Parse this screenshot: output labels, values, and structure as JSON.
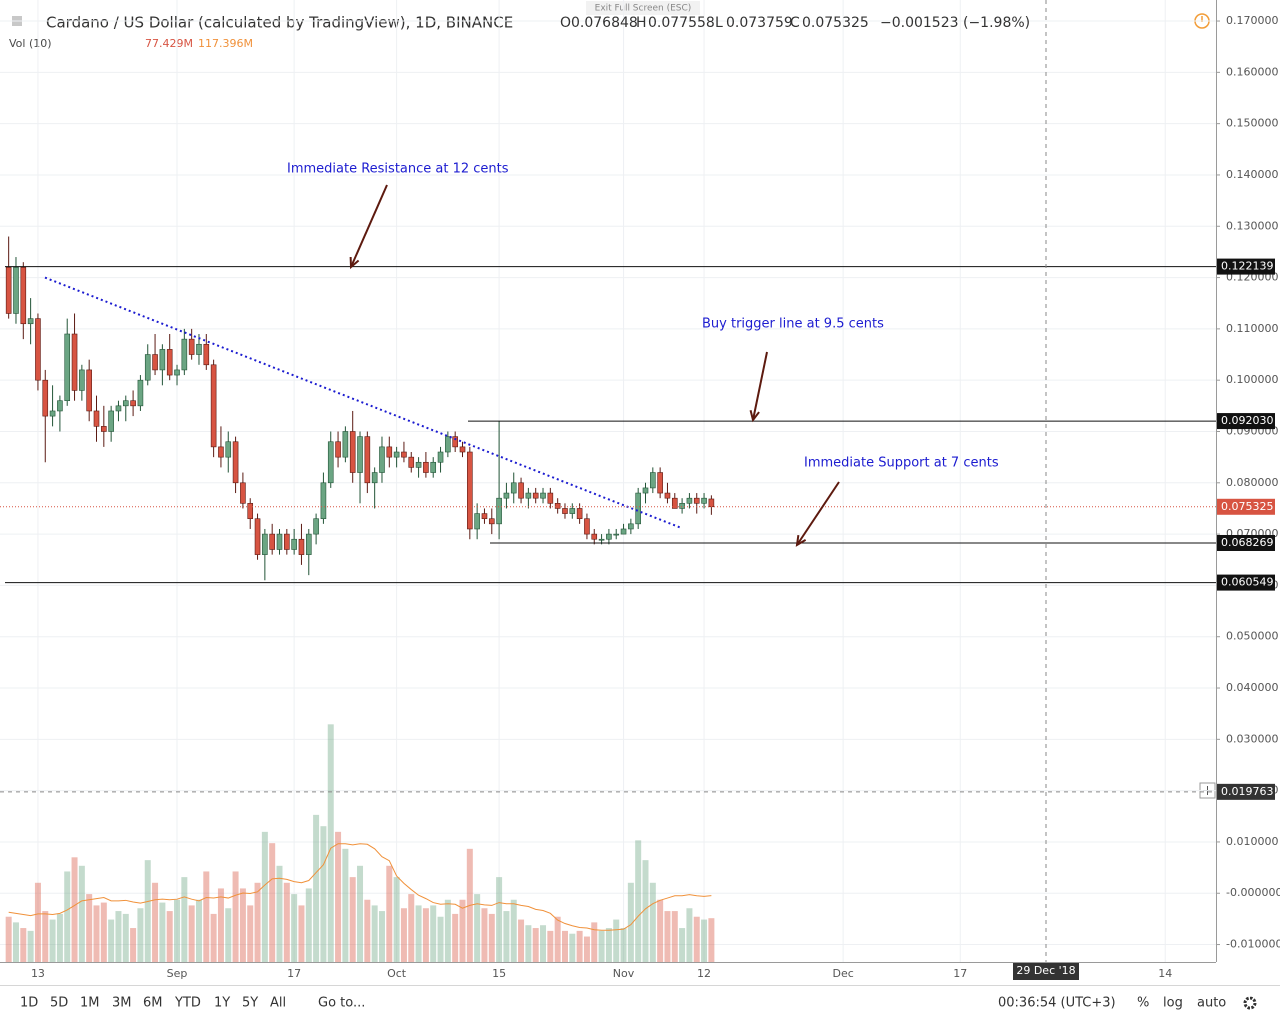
{
  "chart_data": {
    "type": "candlestick",
    "title": "Cardano / US Dollar (calculated by TradingView), 1D, BINANCE",
    "ohlc_labels": [
      "O",
      "H",
      "L",
      "C"
    ],
    "change": "−0.001523 (−1.98%)",
    "volume_title": "Vol (10)",
    "volume_value": "77.429M",
    "volume_ma_value": "117.396M",
    "exit_fullscreen": "Exit Full Screen (ESC)",
    "categories": [
      null,
      null,
      null,
      null,
      "13",
      null,
      null,
      null,
      null,
      null,
      null,
      null,
      null,
      null,
      null,
      null,
      null,
      null,
      null,
      null,
      null,
      null,
      null,
      "Sep",
      null,
      null,
      null,
      null,
      null,
      null,
      null,
      null,
      null,
      null,
      null,
      null,
      null,
      null,
      null,
      "17",
      null,
      null,
      null,
      null,
      null,
      null,
      null,
      null,
      null,
      null,
      null,
      null,
      null,
      "Oct",
      null,
      null,
      null,
      null,
      null,
      null,
      null,
      null,
      null,
      null,
      null,
      null,
      null,
      "15",
      null,
      null,
      null,
      null,
      null,
      null,
      null,
      null,
      null,
      null,
      null,
      null,
      null,
      null,
      null,
      null,
      "Nov",
      null,
      null,
      null,
      null,
      null,
      null,
      null,
      null,
      null,
      null,
      "12",
      null,
      null,
      null,
      null,
      null,
      null,
      null,
      null,
      null,
      null,
      null,
      null,
      null,
      null,
      null,
      null,
      null,
      null,
      "Dec",
      null,
      null,
      null,
      null,
      null,
      null,
      null,
      null,
      null,
      null,
      null,
      null,
      null,
      null,
      null,
      "17",
      null,
      null,
      null,
      null,
      null,
      null,
      null,
      null,
      null,
      null,
      null,
      null,
      null,
      null,
      null,
      null,
      null,
      null,
      null,
      null,
      null,
      null,
      null,
      null,
      null,
      null,
      null,
      "14",
      null,
      null,
      null,
      null,
      null,
      null
    ],
    "open": [
      0.122,
      0.113,
      0.122,
      0.111,
      0.112,
      0.1,
      0.093,
      0.094,
      0.096,
      0.109,
      0.098,
      0.102,
      0.094,
      0.091,
      0.09,
      0.094,
      0.095,
      0.096,
      0.095,
      0.1,
      0.105,
      0.102,
      0.106,
      0.101,
      0.102,
      0.108,
      0.105,
      0.107,
      0.103,
      0.087,
      0.085,
      0.088,
      0.08,
      0.076,
      0.073,
      0.066,
      0.07,
      0.067,
      0.07,
      0.067,
      0.069,
      0.066,
      0.07,
      0.073,
      0.08,
      0.088,
      0.085,
      0.09,
      0.082,
      0.089,
      0.08,
      0.082,
      0.087,
      0.085,
      0.086,
      0.085,
      0.083,
      0.084,
      0.082,
      0.084,
      0.086,
      0.089,
      0.087,
      0.086,
      0.071,
      0.074,
      0.073,
      0.072,
      0.077,
      0.078,
      0.08,
      0.077,
      0.078,
      0.077,
      0.078,
      0.076,
      0.075,
      0.074,
      0.075,
      0.073,
      0.07,
      0.069,
      0.069,
      0.07,
      0.07,
      0.071,
      0.072,
      0.078,
      0.079,
      0.082,
      0.078,
      0.077,
      0.075,
      0.076,
      0.077,
      0.076,
      0.076848,
      null,
      null,
      null,
      null,
      null,
      null,
      null,
      null,
      null,
      null,
      null,
      null,
      null,
      null,
      null,
      null,
      null,
      null,
      null,
      null,
      null,
      null,
      null,
      null,
      null,
      null,
      null,
      null,
      null,
      null,
      null,
      null,
      null,
      null,
      null,
      null,
      null,
      null,
      null,
      null,
      null,
      null,
      null,
      null,
      null,
      null,
      null,
      null,
      null,
      null,
      null,
      null,
      null,
      null,
      null,
      null,
      null,
      null,
      null,
      null,
      null,
      null,
      null,
      null,
      null,
      null,
      null,
      null
    ],
    "high": [
      0.128,
      0.124,
      0.123,
      0.116,
      0.113,
      0.102,
      0.099,
      0.097,
      0.112,
      0.113,
      0.103,
      0.104,
      0.097,
      0.095,
      0.095,
      0.096,
      0.097,
      0.098,
      0.101,
      0.107,
      0.109,
      0.107,
      0.109,
      0.103,
      0.11,
      0.11,
      0.109,
      0.109,
      0.104,
      0.091,
      0.09,
      0.089,
      0.082,
      0.077,
      0.074,
      0.071,
      0.072,
      0.071,
      0.071,
      0.071,
      0.072,
      0.071,
      0.074,
      0.082,
      0.09,
      0.09,
      0.091,
      0.094,
      0.09,
      0.09,
      0.083,
      0.089,
      0.089,
      0.087,
      0.088,
      0.086,
      0.085,
      0.086,
      0.085,
      0.087,
      0.09,
      0.09,
      0.088,
      0.087,
      0.076,
      0.075,
      0.075,
      0.092,
      0.08,
      0.082,
      0.081,
      0.079,
      0.079,
      0.079,
      0.079,
      0.077,
      0.076,
      0.076,
      0.076,
      0.074,
      0.071,
      0.07,
      0.071,
      0.071,
      0.072,
      0.073,
      0.079,
      0.08,
      0.083,
      0.083,
      0.08,
      0.078,
      0.077,
      0.078,
      0.078,
      0.078,
      0.077558,
      null,
      null,
      null,
      null,
      null,
      null,
      null,
      null,
      null,
      null,
      null,
      null,
      null,
      null,
      null,
      null,
      null,
      null,
      null,
      null,
      null,
      null,
      null,
      null,
      null,
      null,
      null,
      null,
      null,
      null,
      null,
      null,
      null,
      null,
      null,
      null,
      null,
      null,
      null,
      null,
      null,
      null,
      null,
      null,
      null,
      null,
      null,
      null,
      null,
      null,
      null,
      null,
      null,
      null,
      null,
      null,
      null,
      null,
      null,
      null,
      null,
      null,
      null,
      null,
      null,
      null,
      null,
      null
    ],
    "low": [
      0.112,
      0.111,
      0.108,
      0.107,
      0.098,
      0.084,
      0.091,
      0.09,
      0.095,
      0.096,
      0.096,
      0.092,
      0.088,
      0.087,
      0.088,
      0.092,
      0.092,
      0.093,
      0.094,
      0.099,
      0.101,
      0.099,
      0.1,
      0.099,
      0.101,
      0.104,
      0.103,
      0.102,
      0.085,
      0.083,
      0.082,
      0.078,
      0.075,
      0.071,
      0.065,
      0.061,
      0.066,
      0.066,
      0.066,
      0.066,
      0.064,
      0.062,
      0.068,
      0.072,
      0.079,
      0.083,
      0.084,
      0.08,
      0.076,
      0.078,
      0.075,
      0.08,
      0.083,
      0.083,
      0.084,
      0.082,
      0.081,
      0.081,
      0.081,
      0.082,
      0.085,
      0.086,
      0.085,
      0.069,
      0.069,
      0.072,
      0.07,
      0.069,
      0.075,
      0.076,
      0.076,
      0.075,
      0.076,
      0.076,
      0.075,
      0.074,
      0.073,
      0.073,
      0.072,
      0.069,
      0.068,
      0.068,
      0.068,
      0.069,
      0.07,
      0.07,
      0.071,
      0.076,
      0.078,
      0.077,
      0.076,
      0.075,
      0.074,
      0.075,
      0.074,
      0.075,
      0.073759,
      null,
      null,
      null,
      null,
      null,
      null,
      null,
      null,
      null,
      null,
      null,
      null,
      null,
      null,
      null,
      null,
      null,
      null,
      null,
      null,
      null,
      null,
      null,
      null,
      null,
      null,
      null,
      null,
      null,
      null,
      null,
      null,
      null,
      null,
      null,
      null,
      null,
      null,
      null,
      null,
      null,
      null,
      null,
      null,
      null,
      null,
      null,
      null,
      null,
      null,
      null,
      null,
      null,
      null,
      null,
      null,
      null,
      null,
      null,
      null,
      null,
      null,
      null,
      null,
      null,
      null,
      null,
      null
    ],
    "close": [
      0.113,
      0.122,
      0.111,
      0.112,
      0.1,
      0.093,
      0.094,
      0.096,
      0.109,
      0.098,
      0.102,
      0.094,
      0.091,
      0.09,
      0.094,
      0.095,
      0.096,
      0.095,
      0.1,
      0.105,
      0.102,
      0.106,
      0.101,
      0.102,
      0.108,
      0.105,
      0.107,
      0.103,
      0.087,
      0.085,
      0.088,
      0.08,
      0.076,
      0.073,
      0.066,
      0.07,
      0.067,
      0.07,
      0.067,
      0.069,
      0.066,
      0.07,
      0.073,
      0.08,
      0.088,
      0.085,
      0.09,
      0.082,
      0.089,
      0.08,
      0.082,
      0.087,
      0.085,
      0.086,
      0.085,
      0.083,
      0.084,
      0.082,
      0.084,
      0.086,
      0.089,
      0.087,
      0.086,
      0.071,
      0.074,
      0.073,
      0.072,
      0.077,
      0.078,
      0.08,
      0.077,
      0.078,
      0.077,
      0.078,
      0.076,
      0.075,
      0.074,
      0.075,
      0.073,
      0.07,
      0.069,
      0.069,
      0.07,
      0.07,
      0.071,
      0.072,
      0.078,
      0.079,
      0.082,
      0.078,
      0.077,
      0.075,
      0.076,
      0.077,
      0.076,
      0.077,
      0.075325,
      null,
      null,
      null,
      null,
      null,
      null,
      null,
      null,
      null,
      null,
      null,
      null,
      null,
      null,
      null,
      null,
      null,
      null,
      null,
      null,
      null,
      null,
      null,
      null,
      null,
      null,
      null,
      null,
      null,
      null,
      null,
      null,
      null,
      null,
      null,
      null,
      null,
      null,
      null,
      null,
      null,
      null,
      null,
      null,
      null,
      null,
      null,
      null,
      null,
      null,
      null,
      null,
      null,
      null,
      null,
      null,
      null,
      null,
      null,
      null,
      null,
      null,
      null,
      null,
      null,
      null,
      null,
      null
    ],
    "volume": [
      80,
      70,
      60,
      55,
      140,
      90,
      75,
      85,
      160,
      185,
      170,
      120,
      100,
      105,
      75,
      90,
      85,
      60,
      95,
      180,
      140,
      105,
      90,
      110,
      150,
      100,
      110,
      160,
      85,
      130,
      95,
      160,
      130,
      100,
      140,
      230,
      210,
      170,
      140,
      120,
      100,
      130,
      260,
      240,
      420,
      230,
      200,
      150,
      170,
      110,
      100,
      90,
      170,
      150,
      95,
      120,
      100,
      95,
      100,
      80,
      110,
      85,
      110,
      200,
      120,
      95,
      85,
      150,
      90,
      110,
      75,
      65,
      60,
      65,
      55,
      80,
      55,
      50,
      55,
      45,
      70,
      55,
      60,
      75,
      60,
      140,
      215,
      180,
      140,
      110,
      90,
      90,
      60,
      95,
      80,
      75,
      77.429,
      null,
      null,
      null,
      null,
      null,
      null,
      null,
      null,
      null,
      null,
      null,
      null,
      null,
      null,
      null,
      null,
      null,
      null,
      null,
      null,
      null,
      null,
      null,
      null,
      null,
      null,
      null,
      null,
      null,
      null,
      null,
      null,
      null,
      null,
      null,
      null,
      null,
      null,
      null,
      null,
      null,
      null,
      null,
      null,
      null,
      null,
      null,
      null,
      null,
      null,
      null,
      null,
      null,
      null,
      null,
      null,
      null,
      null,
      null,
      null,
      null,
      null,
      null,
      null,
      null,
      null,
      null,
      null
    ],
    "volume_ma": [
      88,
      86,
      84,
      82,
      85,
      85,
      84,
      86,
      92,
      100,
      108,
      110,
      112,
      114,
      108,
      108,
      109,
      106,
      104,
      107,
      110,
      111,
      110,
      111,
      115,
      111,
      108,
      114,
      113,
      115,
      113,
      118,
      122,
      121,
      124,
      136,
      147,
      148,
      146,
      142,
      140,
      144,
      158,
      172,
      201,
      209,
      209,
      207,
      209,
      208,
      200,
      186,
      179,
      152,
      139,
      128,
      118,
      112,
      105,
      102,
      103,
      102,
      95,
      100,
      103,
      101,
      100,
      105,
      103,
      103,
      100,
      98,
      93,
      91,
      86,
      74,
      68,
      64,
      61,
      60,
      57,
      56,
      56,
      57,
      58,
      66,
      81,
      94,
      103,
      109,
      113,
      117,
      117,
      119,
      117,
      116,
      117.396,
      null,
      null,
      null,
      null,
      null,
      null,
      null,
      null,
      null,
      null,
      null,
      null,
      null,
      null,
      null,
      null,
      null,
      null,
      null,
      null,
      null,
      null,
      null,
      null,
      null,
      null,
      null,
      null,
      null,
      null,
      null,
      null,
      null,
      null,
      null,
      null,
      null,
      null,
      null,
      null,
      null,
      null,
      null,
      null,
      null,
      null,
      null,
      null,
      null,
      null,
      null,
      null,
      null,
      null,
      null,
      null,
      null,
      null,
      null,
      null,
      null,
      null,
      null,
      null,
      null,
      null,
      null,
      null
    ],
    "up_color": "#6ba583",
    "down_color": "#d75442",
    "ma_color": "#f0913a",
    "trend_color": "#1c1cd0",
    "ylim": [
      -0.0134,
      0.1741
    ],
    "volume_ylim": [
      0,
      1700
    ],
    "yticks": [
      {
        "value": 0.17,
        "label": "0.170000"
      },
      {
        "value": 0.16,
        "label": "0.160000"
      },
      {
        "value": 0.15,
        "label": "0.150000"
      },
      {
        "value": 0.14,
        "label": "0.140000"
      },
      {
        "value": 0.13,
        "label": "0.130000"
      },
      {
        "value": 0.12,
        "label": "0.120000"
      },
      {
        "value": 0.11,
        "label": "0.110000"
      },
      {
        "value": 0.1,
        "label": "0.100000"
      },
      {
        "value": 0.09,
        "label": "0.090000"
      },
      {
        "value": 0.08,
        "label": "0.080000"
      },
      {
        "value": 0.07,
        "label": "0.070000"
      },
      {
        "value": 0.06,
        "label": "0.060000"
      },
      {
        "value": 0.05,
        "label": "0.050000"
      },
      {
        "value": 0.04,
        "label": "0.040000"
      },
      {
        "value": 0.03,
        "label": "0.030000"
      },
      {
        "value": 0.02,
        "label": "0.020000"
      },
      {
        "value": 0.01,
        "label": "0.010000"
      },
      {
        "value": 0,
        "label": "-0.000000"
      },
      {
        "value": -0.01,
        "label": "-0.010000"
      }
    ],
    "grid": true,
    "levels": [
      {
        "value": 0.122139,
        "label": "0.122139"
      },
      {
        "value": 0.09203,
        "label": "0.092030"
      },
      {
        "value": 0.068269,
        "label": "0.068269"
      },
      {
        "value": 0.060549,
        "label": "0.060549"
      }
    ],
    "trendline": [
      0.12,
      0.0713
    ],
    "annotations": [
      "Immediate Resistance at 12 cents",
      "Buy trigger line at 9.5 cents",
      "Immediate Support at 7 cents"
    ],
    "crosshair": {
      "x_label": "29 Dec '18",
      "y": {
        "value": 0.019763,
        "label": "0.019763"
      }
    },
    "toolbar": {
      "ranges": [
        "1D",
        "5D",
        "1M",
        "3M",
        "6M",
        "YTD",
        "1Y",
        "5Y",
        "All"
      ],
      "goto": "Go to...",
      "time": "00:36:54 (UTC+3)",
      "percent": "%",
      "log": "log",
      "auto": "auto"
    }
  }
}
